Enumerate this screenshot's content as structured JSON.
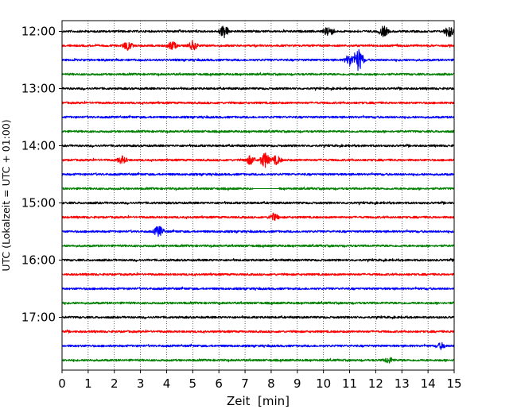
{
  "chart_data": {
    "type": "line",
    "title": "",
    "xlabel": "Zeit  [min]",
    "ylabel": "UTC (Lokalzeit = UTC + 01:00)",
    "xlim": [
      0,
      15
    ],
    "x_ticks": [
      "0",
      "1",
      "2",
      "3",
      "4",
      "5",
      "6",
      "7",
      "8",
      "9",
      "10",
      "11",
      "12",
      "13",
      "14",
      "15"
    ],
    "y_ticks": [
      {
        "label": "12:00",
        "trace": 0
      },
      {
        "label": "13:00",
        "trace": 4
      },
      {
        "label": "14:00",
        "trace": 8
      },
      {
        "label": "15:00",
        "trace": 12
      },
      {
        "label": "16:00",
        "trace": 16
      },
      {
        "label": "17:00",
        "trace": 20
      }
    ],
    "grid": "vertical dotted",
    "trace_minutes": 15,
    "trace_start_times": [
      "12:00",
      "12:15",
      "12:30",
      "12:45",
      "13:00",
      "13:15",
      "13:30",
      "13:45",
      "14:00",
      "14:15",
      "14:30",
      "14:45",
      "15:00",
      "15:15",
      "15:30",
      "15:45",
      "16:00",
      "16:15",
      "16:30",
      "16:45",
      "17:00",
      "17:15",
      "17:30",
      "17:45"
    ],
    "colors": [
      "#000000",
      "#ff0000",
      "#0000ff",
      "#008000"
    ],
    "events": [
      {
        "trace": 0,
        "minute": 6.2,
        "amplitude": 0.9
      },
      {
        "trace": 0,
        "minute": 10.2,
        "amplitude": 0.7
      },
      {
        "trace": 0,
        "minute": 12.3,
        "amplitude": 0.7
      },
      {
        "trace": 0,
        "minute": 14.8,
        "amplitude": 0.8
      },
      {
        "trace": 1,
        "minute": 2.5,
        "amplitude": 0.6
      },
      {
        "trace": 1,
        "minute": 4.2,
        "amplitude": 0.6
      },
      {
        "trace": 1,
        "minute": 5.0,
        "amplitude": 0.6
      },
      {
        "trace": 2,
        "minute": 11.0,
        "amplitude": 0.8
      },
      {
        "trace": 2,
        "minute": 11.35,
        "amplitude": 1.6
      },
      {
        "trace": 9,
        "minute": 2.3,
        "amplitude": 0.5
      },
      {
        "trace": 9,
        "minute": 7.2,
        "amplitude": 0.6
      },
      {
        "trace": 9,
        "minute": 7.75,
        "amplitude": 1.1
      },
      {
        "trace": 9,
        "minute": 8.2,
        "amplitude": 0.6
      },
      {
        "trace": 13,
        "minute": 8.1,
        "amplitude": 0.5
      },
      {
        "trace": 14,
        "minute": 3.7,
        "amplitude": 0.8
      },
      {
        "trace": 22,
        "minute": 14.5,
        "amplitude": 0.4
      },
      {
        "trace": 23,
        "minute": 12.5,
        "amplitude": 0.4
      }
    ],
    "gaps": [
      {
        "trace": 11,
        "from": 7.3,
        "to": 8.3
      }
    ]
  }
}
